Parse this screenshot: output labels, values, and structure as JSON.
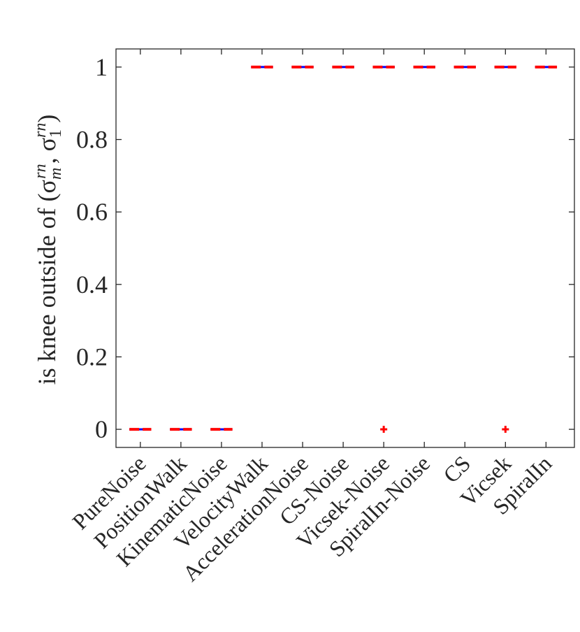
{
  "chart_data": {
    "type": "boxplot",
    "categories": [
      "PureNoise",
      "PositionWalk",
      "KinematicNoise",
      "VelocityWalk",
      "AccelerationNoise",
      "CS-Noise",
      "Vicsek-Noise",
      "SpiralIn-Noise",
      "CS",
      "Vicsek",
      "SpiralIn"
    ],
    "medians": [
      0,
      0,
      0,
      1,
      1,
      1,
      1,
      1,
      1,
      1,
      1
    ],
    "outliers": [
      {
        "category": "Vicsek-Noise",
        "value": 0
      },
      {
        "category": "Vicsek",
        "value": 0
      }
    ],
    "ylabel": "is knee outside of (σ_m^rn, σ_1^rn)",
    "ylabel_parts": {
      "prefix": "is knee outside of (σ",
      "sub_m": "m",
      "sup_1": "rn",
      "comma": ", σ",
      "sub_1": "1",
      "sup_2": "rn",
      "suffix": ")"
    },
    "yticks": [
      "0",
      "0.2",
      "0.4",
      "0.6",
      "0.8",
      "1"
    ],
    "ytick_values": [
      0,
      0.2,
      0.4,
      0.6,
      0.8,
      1
    ],
    "ylim": [
      -0.05,
      1.05
    ],
    "grid": false,
    "colors": {
      "median": "#ff0000",
      "box": "#0000ff",
      "outlier": "#ff0000",
      "axis": "#262626"
    }
  }
}
